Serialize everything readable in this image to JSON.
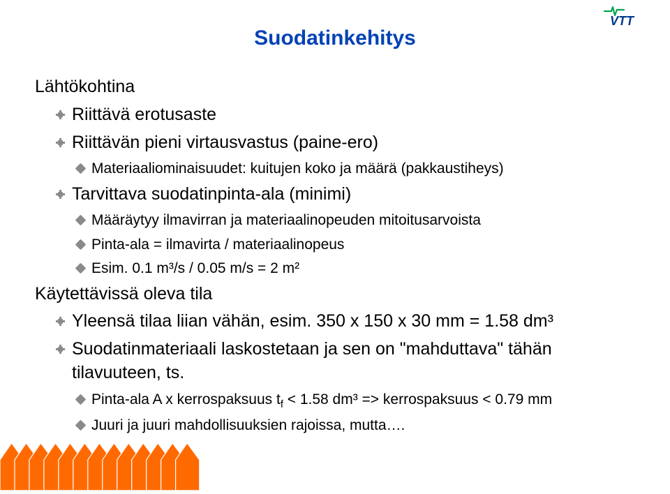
{
  "logo": {
    "text": "VTT",
    "color": "#003b8e",
    "pulse_color": "#00a54f"
  },
  "title": "Suodatinkehitys",
  "title_color": "#0042b6",
  "content": {
    "items": [
      {
        "level": 1,
        "text": "Lähtökohtina"
      },
      {
        "level": 2,
        "text": "Riittävä erotusaste"
      },
      {
        "level": 2,
        "text": "Riittävän pieni virtausvastus (paine-ero)"
      },
      {
        "level": 3,
        "text": "Materiaaliominaisuudet: kuitujen koko ja määrä (pakkaustiheys)"
      },
      {
        "level": 2,
        "text": "Tarvittava suodatinpinta-ala (minimi)"
      },
      {
        "level": 3,
        "text": "Määräytyy ilmavirran ja materiaalinopeuden mitoitusarvoista"
      },
      {
        "level": 3,
        "text": "Pinta-ala = ilmavirta / materiaalinopeus"
      },
      {
        "level": 3,
        "text": "Esim. 0.1 m³/s / 0.05 m/s = 2 m²"
      },
      {
        "level": 1,
        "text": "Käytettävissä oleva tila"
      },
      {
        "level": 2,
        "text": "Yleensä tilaa liian vähän, esim. 350 x 150 x 30 mm = 1.58 dm³"
      },
      {
        "level": 2,
        "text": "Suodatinmateriaali laskostetaan ja sen on \"mahduttava\" tähän tilavuuteen, ts."
      },
      {
        "level": 3,
        "html": "Pinta-ala A x kerrospaksuus t<span class=\"sub\">f</span> &lt; 1.58 dm³ =&gt; kerrospaksuus &lt; 0.79 mm"
      },
      {
        "level": 3,
        "text": "Juuri ja juuri mahdollisuuksien rajoissa, mutta…."
      }
    ]
  },
  "ladder": {
    "fill": "#ff6a00",
    "stroke": "#ffffff",
    "count": 13
  },
  "fontsize": {
    "title": 30,
    "lvl1": 25,
    "lvl2": 25,
    "lvl3": 21
  },
  "colors": {
    "text": "#000000",
    "bullet": "#8a8a8a",
    "background": "#ffffff"
  }
}
